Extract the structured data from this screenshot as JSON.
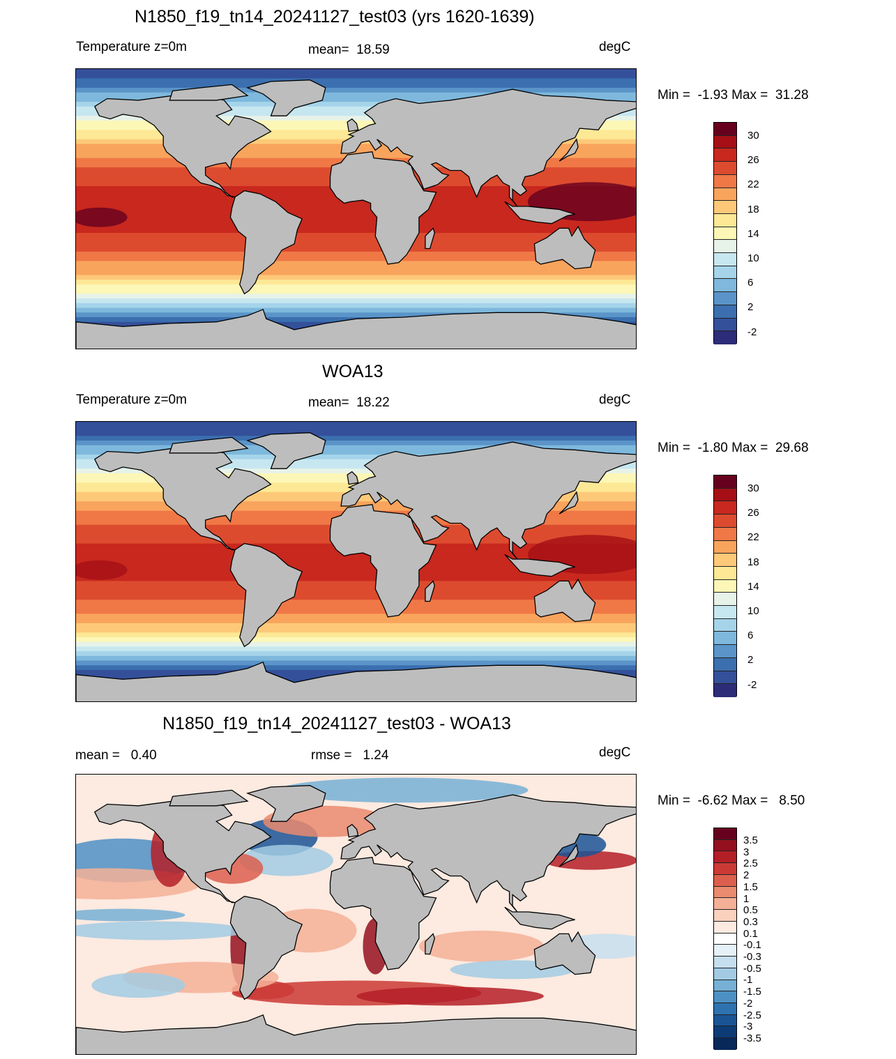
{
  "panel1": {
    "title": "N1850_f19_tn14_20241127_test03 (yrs 1620-1639)",
    "left": "Temperature z=0m",
    "center": "mean=  18.59",
    "right": "degC",
    "minmax": "Min =  -1.93 Max =  31.28"
  },
  "panel2": {
    "title": "WOA13",
    "left": "Temperature z=0m",
    "center": "mean=  18.22",
    "right": "degC",
    "minmax": "Min =  -1.80 Max =  29.68"
  },
  "panel3": {
    "title": "N1850_f19_tn14_20241127_test03 - WOA13",
    "left": "mean =   0.40",
    "center": "rmse =   1.24",
    "right": "degC",
    "minmax": "Min =  -6.62 Max =   8.50"
  },
  "colorbar_temp": {
    "labels": [
      "30",
      "26",
      "22",
      "18",
      "14",
      "10",
      "6",
      "2",
      "-2"
    ],
    "colors": [
      "#67001f",
      "#a50f15",
      "#c8281e",
      "#dd4b2f",
      "#ef7846",
      "#f9a45d",
      "#fdc979",
      "#fde896",
      "#fcf7b6",
      "#e7f3e8",
      "#c7e7f0",
      "#a5d4ea",
      "#7eb8dc",
      "#5a94c8",
      "#3b6faf",
      "#34509a",
      "#2c2c78"
    ]
  },
  "colorbar_diff": {
    "labels": [
      "3.5",
      "3",
      "2.5",
      "2",
      "1.5",
      "1",
      "0.5",
      "0.3",
      "0.1",
      "-0.1",
      "-0.3",
      "-0.5",
      "-1",
      "-1.5",
      "-2",
      "-2.5",
      "-3",
      "-3.5"
    ],
    "colors": [
      "#67001f",
      "#94101f",
      "#b41f27",
      "#cb3a35",
      "#dc5f4d",
      "#ea8a6e",
      "#f4b096",
      "#f9d1bd",
      "#fdeae0",
      "#ffffff",
      "#e6f0f7",
      "#c6dfef",
      "#a2cbe3",
      "#76b0d5",
      "#4d91c4",
      "#2e72b0",
      "#1a5495",
      "#0d3b76",
      "#08285a"
    ]
  }
}
